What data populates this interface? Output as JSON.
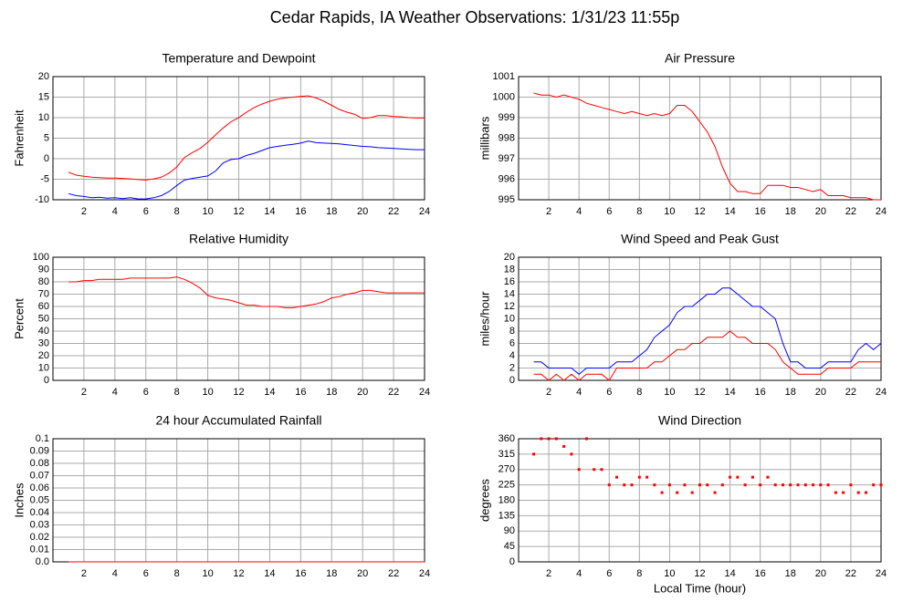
{
  "title": "Cedar Rapids, IA Weather Observations: 1/31/23 11:55p",
  "chart_data": [
    {
      "type": "line",
      "title": "Temperature and Dewpoint",
      "ylabel": "Fahrenheit",
      "grid": true,
      "x": [
        1,
        1.5,
        2,
        2.5,
        3,
        3.5,
        4,
        4.5,
        5,
        5.5,
        6,
        6.5,
        7,
        7.5,
        8,
        8.5,
        9,
        9.5,
        10,
        10.5,
        11,
        11.5,
        12,
        12.5,
        13,
        13.5,
        14,
        14.5,
        15,
        15.5,
        16,
        16.5,
        17,
        17.5,
        18,
        18.5,
        19,
        19.5,
        20,
        20.5,
        21,
        21.5,
        22,
        22.5,
        23,
        23.5,
        24
      ],
      "xlim": [
        0,
        24
      ],
      "xticks": [
        2,
        4,
        6,
        8,
        10,
        12,
        14,
        16,
        18,
        20,
        22,
        24
      ],
      "ylim": [
        -10,
        20
      ],
      "yticks": [
        -10,
        -5,
        0,
        5,
        10,
        15,
        20
      ],
      "series": [
        {
          "color": "#ff0000",
          "values": [
            -3.3,
            -4,
            -4.3,
            -4.5,
            -4.6,
            -4.7,
            -4.7,
            -4.8,
            -4.9,
            -5.1,
            -5.2,
            -4.9,
            -4.5,
            -3.5,
            -2,
            0.3,
            1.5,
            2.5,
            4,
            5.8,
            7.5,
            9,
            10,
            11.3,
            12.5,
            13.3,
            14,
            14.5,
            14.8,
            15,
            15.2,
            15.3,
            14.8,
            14,
            13,
            12,
            11.3,
            10.8,
            9.8,
            10,
            10.5,
            10.5,
            10.3,
            10.2,
            10,
            9.9,
            9.9
          ]
        },
        {
          "color": "#0000ff",
          "values": [
            -8.5,
            -9,
            -9.2,
            -9.5,
            -9.4,
            -9.6,
            -9.5,
            -9.7,
            -9.5,
            -9.8,
            -9.8,
            -9.5,
            -9,
            -8,
            -6.5,
            -5.2,
            -4.8,
            -4.5,
            -4.2,
            -3,
            -1,
            -0.2,
            0,
            0.8,
            1.3,
            2,
            2.7,
            3,
            3.3,
            3.5,
            3.8,
            4.3,
            3.9,
            3.8,
            3.7,
            3.6,
            3.4,
            3.2,
            3,
            2.9,
            2.7,
            2.6,
            2.5,
            2.4,
            2.3,
            2.2,
            2.2
          ]
        }
      ]
    },
    {
      "type": "line",
      "title": "Air Pressure",
      "ylabel": "millibars",
      "grid": true,
      "x": [
        1,
        1.5,
        2,
        2.5,
        3,
        3.5,
        4,
        4.5,
        5,
        5.5,
        6,
        6.5,
        7,
        7.5,
        8,
        8.5,
        9,
        9.5,
        10,
        10.5,
        11,
        11.5,
        12,
        12.5,
        13,
        13.5,
        14,
        14.5,
        15,
        15.5,
        16,
        16.5,
        17,
        17.5,
        18,
        18.5,
        19,
        19.5,
        20,
        20.5,
        21,
        21.5,
        22,
        22.5,
        23,
        23.5,
        24
      ],
      "xlim": [
        0,
        24
      ],
      "xticks": [
        2,
        4,
        6,
        8,
        10,
        12,
        14,
        16,
        18,
        20,
        22,
        24
      ],
      "ylim": [
        995,
        1001
      ],
      "yticks": [
        995,
        996,
        997,
        998,
        999,
        1000,
        1001
      ],
      "series": [
        {
          "color": "#ff0000",
          "values": [
            1000.2,
            1000.1,
            1000.1,
            1000.0,
            1000.1,
            1000.0,
            999.9,
            999.7,
            999.6,
            999.5,
            999.4,
            999.3,
            999.2,
            999.3,
            999.2,
            999.1,
            999.2,
            999.1,
            999.2,
            999.6,
            999.6,
            999.3,
            998.8,
            998.3,
            997.6,
            996.6,
            995.8,
            995.4,
            995.4,
            995.3,
            995.3,
            995.7,
            995.7,
            995.7,
            995.6,
            995.6,
            995.5,
            995.4,
            995.5,
            995.2,
            995.2,
            995.2,
            995.1,
            995.1,
            995.1,
            995.0,
            995.0
          ]
        }
      ]
    },
    {
      "type": "line",
      "title": "Relative Humidity",
      "ylabel": "Percent",
      "grid": true,
      "x": [
        1,
        1.5,
        2,
        2.5,
        3,
        3.5,
        4,
        4.5,
        5,
        5.5,
        6,
        6.5,
        7,
        7.5,
        8,
        8.5,
        9,
        9.5,
        10,
        10.5,
        11,
        11.5,
        12,
        12.5,
        13,
        13.5,
        14,
        14.5,
        15,
        15.5,
        16,
        16.5,
        17,
        17.5,
        18,
        18.5,
        19,
        19.5,
        20,
        20.5,
        21,
        21.5,
        22,
        22.5,
        23,
        23.5,
        24
      ],
      "xlim": [
        0,
        24
      ],
      "xticks": [
        2,
        4,
        6,
        8,
        10,
        12,
        14,
        16,
        18,
        20,
        22,
        24
      ],
      "ylim": [
        0,
        100
      ],
      "yticks": [
        0,
        10,
        20,
        30,
        40,
        50,
        60,
        70,
        80,
        90,
        100
      ],
      "series": [
        {
          "color": "#ff0000",
          "values": [
            80,
            80,
            81,
            81,
            82,
            82,
            82,
            82,
            83,
            83,
            83,
            83,
            83,
            83,
            84,
            82,
            79,
            75,
            69,
            67,
            66,
            65,
            63,
            61,
            61,
            60,
            60,
            60,
            59,
            59,
            60,
            61,
            62,
            64,
            67,
            68,
            70,
            71,
            73,
            73,
            72,
            71,
            71,
            71,
            71,
            71,
            71
          ]
        }
      ]
    },
    {
      "type": "line",
      "title": "Wind Speed and Peak Gust",
      "ylabel": "miles/hour",
      "grid": true,
      "x": [
        1,
        1.5,
        2,
        2.5,
        3,
        3.5,
        4,
        4.5,
        5,
        5.5,
        6,
        6.5,
        7,
        7.5,
        8,
        8.5,
        9,
        9.5,
        10,
        10.5,
        11,
        11.5,
        12,
        12.5,
        13,
        13.5,
        14,
        14.5,
        15,
        15.5,
        16,
        16.5,
        17,
        17.5,
        18,
        18.5,
        19,
        19.5,
        20,
        20.5,
        21,
        21.5,
        22,
        22.5,
        23,
        23.5,
        24
      ],
      "xlim": [
        0,
        24
      ],
      "xticks": [
        2,
        4,
        6,
        8,
        10,
        12,
        14,
        16,
        18,
        20,
        22,
        24
      ],
      "ylim": [
        0,
        20
      ],
      "yticks": [
        0,
        2,
        4,
        6,
        8,
        10,
        12,
        14,
        16,
        18,
        20
      ],
      "series": [
        {
          "color": "#ff0000",
          "values": [
            1,
            1,
            0,
            1,
            0,
            1,
            0,
            1,
            1,
            1,
            0,
            2,
            2,
            2,
            2,
            2,
            3,
            3,
            4,
            5,
            5,
            6,
            6,
            7,
            7,
            7,
            8,
            7,
            7,
            6,
            6,
            6,
            5,
            3,
            2,
            1,
            1,
            1,
            1,
            2,
            2,
            2,
            2,
            3,
            3,
            3,
            3
          ]
        },
        {
          "color": "#0000ff",
          "values": [
            3,
            3,
            2,
            2,
            2,
            2,
            1,
            2,
            2,
            2,
            2,
            3,
            3,
            3,
            4,
            5,
            7,
            8,
            9,
            11,
            12,
            12,
            13,
            14,
            14,
            15,
            15,
            14,
            13,
            12,
            12,
            11,
            10,
            6,
            3,
            3,
            2,
            2,
            2,
            3,
            3,
            3,
            3,
            5,
            6,
            5,
            6
          ]
        }
      ]
    },
    {
      "type": "line",
      "title": "24 hour Accumulated Rainfall",
      "ylabel": "Inches",
      "grid": true,
      "x": [
        1,
        24
      ],
      "xlim": [
        0,
        24
      ],
      "xticks": [
        2,
        4,
        6,
        8,
        10,
        12,
        14,
        16,
        18,
        20,
        22,
        24
      ],
      "ylim": [
        0,
        0.1
      ],
      "yticks": [
        {
          "value": 0,
          "label": "0.0"
        },
        0.01,
        0.02,
        0.03,
        0.04,
        0.05,
        0.06,
        0.07,
        0.08,
        0.09,
        0.1
      ],
      "series": [
        {
          "color": "#ff0000",
          "values": [
            0,
            0
          ]
        }
      ]
    },
    {
      "type": "scatter",
      "title": "Wind Direction",
      "ylabel": "degrees",
      "xlabel": "Local Time (hour)",
      "grid": true,
      "x": [
        1,
        1.5,
        2,
        2.5,
        3,
        3.5,
        4,
        4.5,
        5,
        5.5,
        6,
        6.5,
        7,
        7.5,
        8,
        8.5,
        9,
        9.5,
        10,
        10.5,
        11,
        11.5,
        12,
        12.5,
        13,
        13.5,
        14,
        14.5,
        15,
        15.5,
        16,
        16.5,
        17,
        17.5,
        18,
        18.5,
        19,
        19.5,
        20,
        20.5,
        21,
        21.5,
        22,
        22.5,
        23,
        23.5,
        24
      ],
      "xlim": [
        0,
        24
      ],
      "xticks": [
        2,
        4,
        6,
        8,
        10,
        12,
        14,
        16,
        18,
        20,
        22,
        24
      ],
      "ylim": [
        0,
        360
      ],
      "yticks": [
        0,
        45,
        90,
        135,
        180,
        225,
        270,
        315,
        360
      ],
      "series": [
        {
          "color": "#ff0000",
          "values": [
            315,
            360,
            360,
            360,
            337.5,
            315,
            270,
            360,
            270,
            270,
            225,
            247.5,
            225,
            225,
            247.5,
            247.5,
            225,
            202.5,
            225,
            202.5,
            225,
            202.5,
            225,
            225,
            202.5,
            225,
            247.5,
            247.5,
            225,
            247.5,
            225,
            247.5,
            225,
            225,
            225,
            225,
            225,
            225,
            225,
            225,
            202.5,
            202.5,
            225,
            202.5,
            202.5,
            225,
            225
          ]
        }
      ]
    }
  ]
}
